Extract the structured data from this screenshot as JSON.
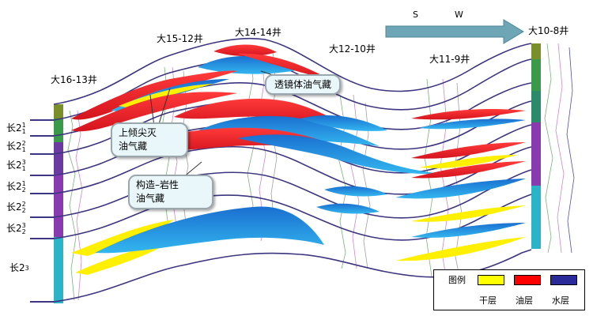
{
  "direction": {
    "s": "S",
    "w": "W"
  },
  "wells": [
    {
      "name": "大16-13井"
    },
    {
      "name": "大15-12井"
    },
    {
      "name": "大14-14井"
    },
    {
      "name": "大12-10井"
    },
    {
      "name": "大11-9井"
    },
    {
      "name": "大10-8井"
    }
  ],
  "layers": [
    {
      "base": "长2",
      "sup": "1",
      "sub": "1"
    },
    {
      "base": "长2",
      "sup": "2",
      "sub": "1"
    },
    {
      "base": "长2",
      "sup": "3",
      "sub": "1"
    },
    {
      "base": "长2",
      "sup": "1",
      "sub": "2"
    },
    {
      "base": "长2",
      "sup": "2",
      "sub": "2"
    },
    {
      "base": "长2",
      "sup": "3",
      "sub": "2"
    },
    {
      "base": "长2",
      "sup": "",
      "sub": "3"
    }
  ],
  "callouts": {
    "lens": "透镜体油气藏",
    "updip_line1": "上倾尖灭",
    "updip_line2": "油气藏",
    "struct_line1": "构造–岩性",
    "struct_line2": "油气藏"
  },
  "legend": {
    "title": "图例",
    "items": [
      {
        "label": "干层",
        "color": "#ffff00"
      },
      {
        "label": "油层",
        "color": "#ff0000"
      },
      {
        "label": "水层",
        "color": "#2a2a9a"
      }
    ]
  },
  "colors": {
    "boundary": "#3c3580",
    "oil": "#e8202a",
    "water": "#1a8fd6",
    "dry": "#ffef00",
    "arrow": "#6fa6b6"
  }
}
